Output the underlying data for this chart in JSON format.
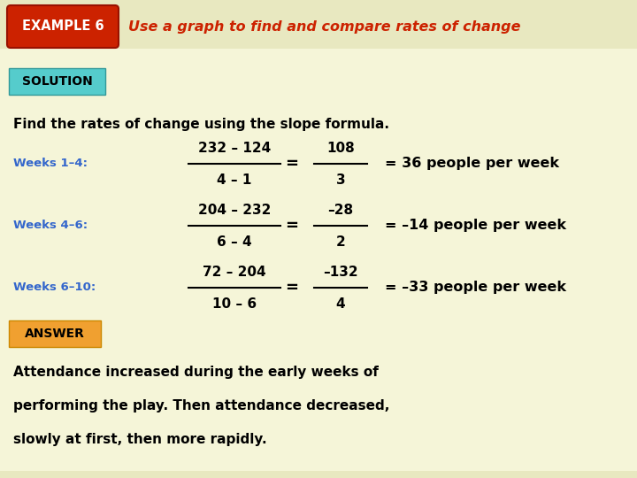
{
  "bg_color": "#f5f5d8",
  "stripe_color": "#e8e8c0",
  "example_box_bg": "#cc2200",
  "example_box_text": "EXAMPLE 6",
  "example_box_text_color": "#ffffff",
  "title_text": "Use a graph to find and compare rates of change",
  "title_color": "#cc2200",
  "solution_box_bg": "#55cccc",
  "solution_box_text": "SOLUTION",
  "find_text": "Find the rates of change using the slope formula.",
  "weeks_label_color": "#3366cc",
  "weeks_labels": [
    "Weeks 1–4:",
    "Weeks 4–6:",
    "Weeks 6–10:"
  ],
  "fractions_num": [
    "232 – 124",
    "204 – 232",
    "72 – 204"
  ],
  "fractions_den": [
    "4 – 1",
    "6 – 4",
    "10 – 6"
  ],
  "simplified_num": [
    "108",
    "–28",
    "–132"
  ],
  "simplified_den": [
    "3",
    "2",
    "4"
  ],
  "results": [
    "= 36 people per week",
    "= –14 people per week",
    "= –33 people per week"
  ],
  "answer_box_bg": "#f0a030",
  "answer_box_text": "ANSWER",
  "answer_lines": [
    "Attendance increased during the early weeks of",
    "performing the play. Then attendance decreased,",
    "slowly at first, then more rapidly."
  ],
  "figw": 7.2,
  "figh": 5.4,
  "dpi": 100
}
